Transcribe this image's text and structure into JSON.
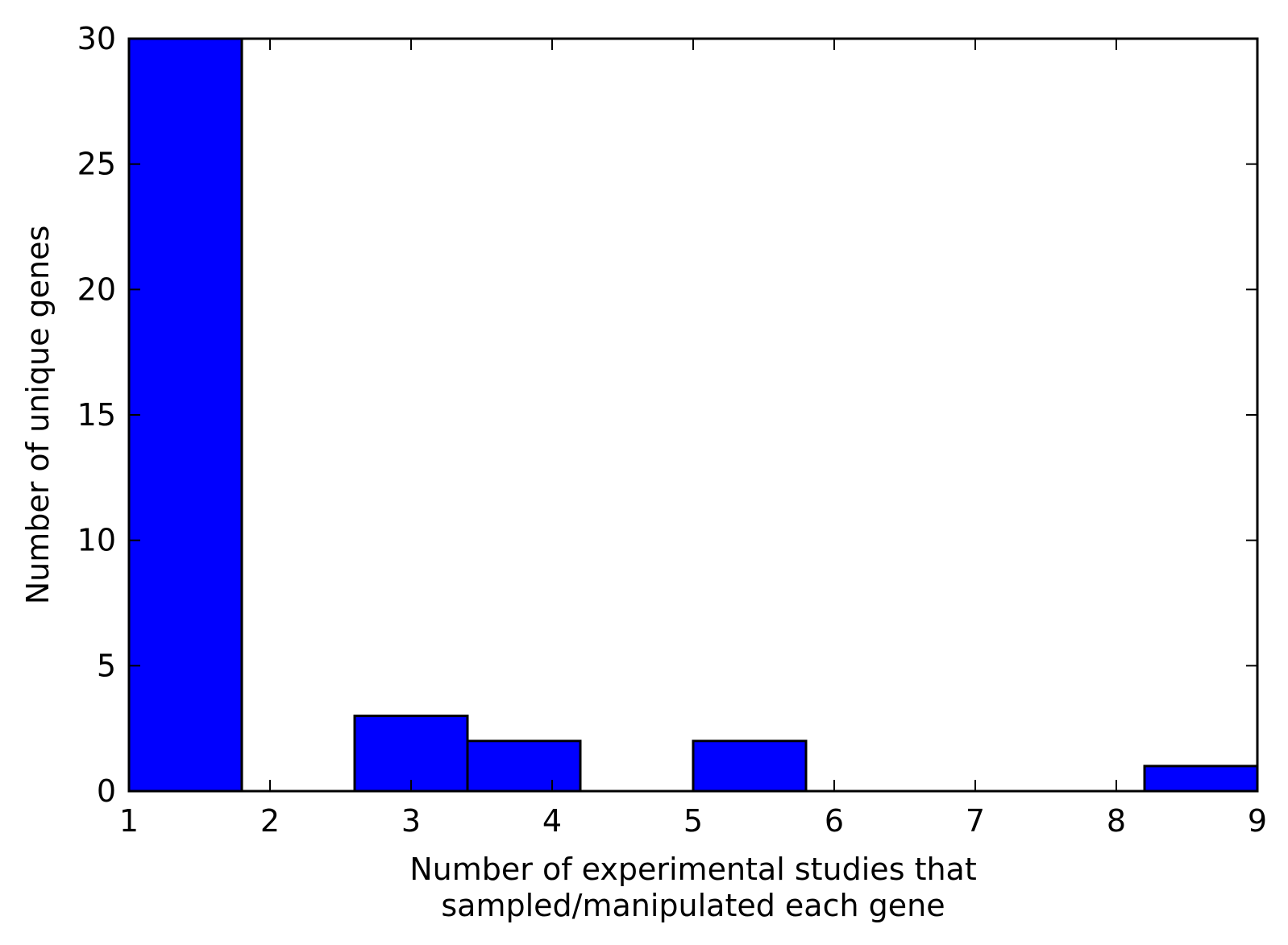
{
  "chart_data": {
    "type": "histogram",
    "title": "",
    "xlabel_lines": [
      "Number of experimental studies that",
      "sampled/manipulated each gene"
    ],
    "ylabel": "Number of unique genes",
    "xlim": [
      1,
      9
    ],
    "ylim": [
      0,
      30
    ],
    "xticks": [
      1,
      2,
      3,
      4,
      5,
      6,
      7,
      8,
      9
    ],
    "yticks": [
      0,
      5,
      10,
      15,
      20,
      25,
      30
    ],
    "bins": [
      {
        "x0": 1.0,
        "x1": 1.8,
        "value": 30
      },
      {
        "x0": 1.8,
        "x1": 2.6,
        "value": 0
      },
      {
        "x0": 2.6,
        "x1": 3.4,
        "value": 3
      },
      {
        "x0": 3.4,
        "x1": 4.2,
        "value": 2
      },
      {
        "x0": 4.2,
        "x1": 5.0,
        "value": 0
      },
      {
        "x0": 5.0,
        "x1": 5.8,
        "value": 2
      },
      {
        "x0": 5.8,
        "x1": 6.6,
        "value": 0
      },
      {
        "x0": 6.6,
        "x1": 7.4,
        "value": 0
      },
      {
        "x0": 7.4,
        "x1": 8.2,
        "value": 0
      },
      {
        "x0": 8.2,
        "x1": 9.0,
        "value": 1
      }
    ],
    "bar_color": "#0000ff",
    "edge_color": "#000000",
    "grid": false,
    "legend": "none"
  }
}
